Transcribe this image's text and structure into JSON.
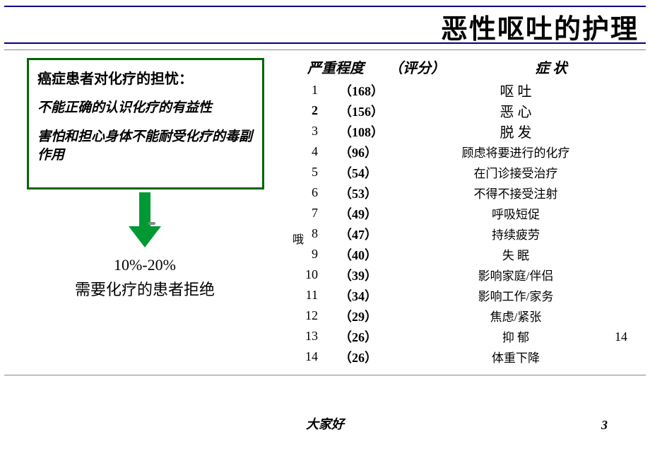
{
  "title": "恶性呕吐的护理",
  "worry": {
    "heading": "癌症患者对化疗的担忧：",
    "line1": "不能正确的认识化疗的有益性",
    "line2": "害怕和担心身体不能耐受化疗的毒副作用"
  },
  "arrow": {
    "color": "#009933",
    "width": 44,
    "height": 78
  },
  "refuse": {
    "percent": "10%-20%",
    "text": "需要化疗的患者拒绝"
  },
  "table": {
    "header": {
      "rank": "严重程度",
      "score": "（评分）",
      "symptom": "症 状"
    },
    "rows": [
      {
        "rank": "1",
        "rank_bold": false,
        "score": "168",
        "symptom": "呕 吐",
        "sym_size": 20
      },
      {
        "rank": "2",
        "rank_bold": true,
        "score": "156",
        "symptom": "恶 心",
        "sym_size": 20
      },
      {
        "rank": "3",
        "rank_bold": false,
        "score": "108",
        "symptom": "脱 发",
        "sym_size": 20
      },
      {
        "rank": "4",
        "rank_bold": false,
        "score": "96",
        "symptom": "顾虑将要进行的化疗",
        "sym_size": 17
      },
      {
        "rank": "5",
        "rank_bold": false,
        "score": "54",
        "symptom": "在门诊接受治疗",
        "sym_size": 17
      },
      {
        "rank": "6",
        "rank_bold": false,
        "score": "53",
        "symptom": "不得不接受注射",
        "sym_size": 17
      },
      {
        "rank": "7",
        "rank_bold": false,
        "score": "49",
        "symptom": "呼吸短促",
        "sym_size": 17
      },
      {
        "rank": "8",
        "rank_bold": false,
        "score": "47",
        "symptom": "持续疲劳",
        "sym_size": 17
      },
      {
        "rank": "9",
        "rank_bold": false,
        "score": "40",
        "symptom": "失 眠",
        "sym_size": 17
      },
      {
        "rank": "10",
        "rank_bold": false,
        "score": "39",
        "symptom": "影响家庭/伴侣",
        "sym_size": 17
      },
      {
        "rank": "11",
        "rank_bold": false,
        "score": "34",
        "symptom": "影响工作/家务",
        "sym_size": 17
      },
      {
        "rank": "12",
        "rank_bold": false,
        "score": "29",
        "symptom": "焦虑/紧张",
        "sym_size": 17
      },
      {
        "rank": "13",
        "rank_bold": false,
        "score": "26",
        "symptom": "抑 郁",
        "sym_size": 17
      },
      {
        "rank": "14",
        "rank_bold": false,
        "score": "26",
        "symptom": "体重下降",
        "sym_size": 17
      }
    ]
  },
  "stray": {
    "fourteen": "14",
    "ow": "哦"
  },
  "footer": {
    "greeting": "大家好",
    "page": "3"
  },
  "colors": {
    "title_border": "#000080",
    "box_border": "#006600",
    "arrow_fill": "#009933",
    "text": "#000000",
    "rule": "#888888",
    "background": "#ffffff"
  }
}
